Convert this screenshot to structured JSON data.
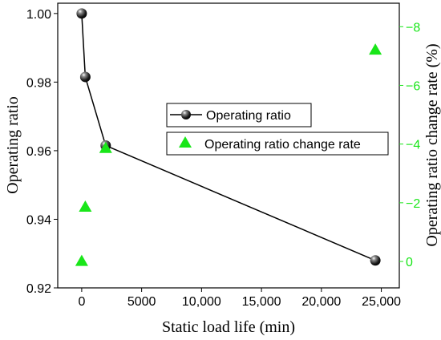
{
  "chart_data": {
    "type": "scatter",
    "xlabel": "Static load life (min)",
    "ylabel": "Operating ratio",
    "y2label": "Operating ratio change rate (%)",
    "xlim": [
      -2000,
      26500
    ],
    "ylim": [
      0.92,
      1.003
    ],
    "y2lim": [
      0.9,
      -8.8
    ],
    "x_ticks": [
      0,
      5000,
      10000,
      15000,
      20000,
      25000
    ],
    "x_tick_labels": [
      "0",
      "5000",
      "10,000",
      "15,000",
      "20,000",
      "25,000"
    ],
    "y_ticks": [
      0.92,
      0.94,
      0.96,
      0.98,
      1.0
    ],
    "y_tick_labels": [
      "0.92",
      "0.94",
      "0.96",
      "0.98",
      "1.00"
    ],
    "y2_ticks": [
      0,
      -2,
      -4,
      -6,
      -8
    ],
    "y2_tick_labels": [
      "0",
      "−2",
      "−4",
      "−6",
      "−8"
    ],
    "y2_reversed": true,
    "series": [
      {
        "name": "Operating ratio",
        "axis": "left",
        "marker": "sphere",
        "line": true,
        "color": "#000000",
        "x": [
          0,
          300,
          2000,
          24500
        ],
        "y": [
          1.0,
          0.9815,
          0.9615,
          0.928
        ]
      },
      {
        "name": "Operating ratio change rate",
        "axis": "right",
        "marker": "triangle",
        "line": false,
        "color": "#19e619",
        "x": [
          0,
          300,
          2000,
          24500
        ],
        "y": [
          0,
          -1.85,
          -3.85,
          -7.2
        ]
      }
    ],
    "legend": "center",
    "grid": false
  }
}
